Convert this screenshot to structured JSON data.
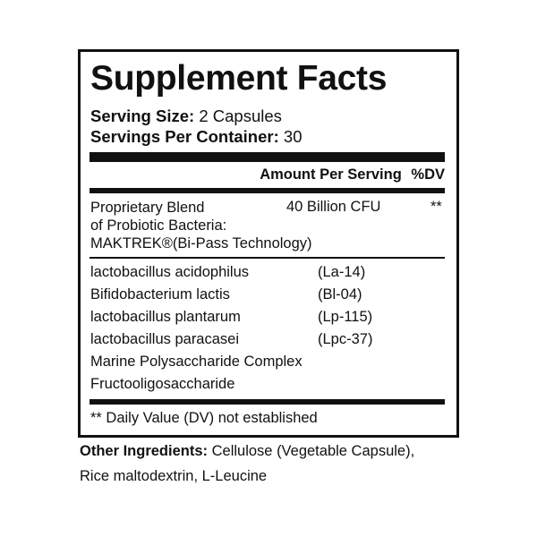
{
  "title": "Supplement Facts",
  "serving_size": {
    "label": "Serving Size:",
    "value": "2 Capsules"
  },
  "servings_per_container": {
    "label": "Servings Per Container:",
    "value": "30"
  },
  "header": {
    "amount": "Amount Per Serving",
    "dv": "%DV"
  },
  "blend": {
    "lines": [
      "Proprietary Blend",
      "of Probiotic Bacteria:",
      "MAKTREK®(Bi-Pass Technology)"
    ],
    "amount": "40 Billion CFU",
    "dv": "**"
  },
  "ingredients": [
    {
      "name": "lactobacillus acidophilus",
      "strain": "(La-14)"
    },
    {
      "name": "Bifidobacterium lactis",
      "strain": "(Bl-04)"
    },
    {
      "name": "lactobacillus plantarum",
      "strain": "(Lp-115)"
    },
    {
      "name": "lactobacillus paracasei",
      "strain": "(Lpc-37)"
    },
    {
      "name": "Marine Polysaccharide Complex",
      "strain": ""
    },
    {
      "name": "Fructooligosaccharide",
      "strain": ""
    }
  ],
  "footnote": "** Daily Value (DV) not established",
  "other_ingredients": {
    "label": "Other Ingredients:",
    "line1": "Cellulose (Vegetable Capsule),",
    "line2": "Rice maltodextrin, L-Leucine"
  }
}
